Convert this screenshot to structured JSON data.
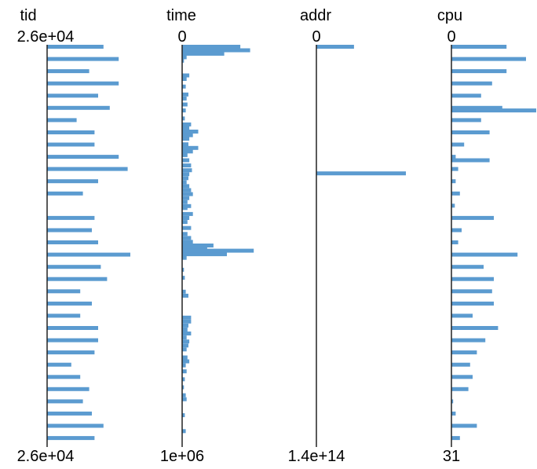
{
  "chart_data": {
    "type": "bar",
    "orientation": "horizontal",
    "grid": false,
    "legend": "none",
    "colors": {
      "bar": "#5b9bd0",
      "axis": "#222222",
      "text": "#000000"
    },
    "columns": [
      {
        "name": "tid",
        "top_label": "2.6e+04",
        "bottom_label": "2.6e+04",
        "bars": [
          {
            "pos": 0.0,
            "len": 0.63
          },
          {
            "pos": 0.0307,
            "len": 0.8
          },
          {
            "pos": 0.0614,
            "len": 0.47
          },
          {
            "pos": 0.0921,
            "len": 0.8
          },
          {
            "pos": 0.1228,
            "len": 0.57
          },
          {
            "pos": 0.1535,
            "len": 0.7
          },
          {
            "pos": 0.1842,
            "len": 0.33
          },
          {
            "pos": 0.2149,
            "len": 0.53
          },
          {
            "pos": 0.2456,
            "len": 0.53
          },
          {
            "pos": 0.2763,
            "len": 0.8
          },
          {
            "pos": 0.307,
            "len": 0.9
          },
          {
            "pos": 0.3377,
            "len": 0.57
          },
          {
            "pos": 0.3684,
            "len": 0.4
          },
          {
            "pos": 0.4298,
            "len": 0.53
          },
          {
            "pos": 0.4605,
            "len": 0.5
          },
          {
            "pos": 0.4912,
            "len": 0.57
          },
          {
            "pos": 0.5219,
            "len": 0.93
          },
          {
            "pos": 0.5526,
            "len": 0.6
          },
          {
            "pos": 0.5833,
            "len": 0.67
          },
          {
            "pos": 0.614,
            "len": 0.37
          },
          {
            "pos": 0.6447,
            "len": 0.5
          },
          {
            "pos": 0.6754,
            "len": 0.37
          },
          {
            "pos": 0.7061,
            "len": 0.57
          },
          {
            "pos": 0.7368,
            "len": 0.57
          },
          {
            "pos": 0.7675,
            "len": 0.53
          },
          {
            "pos": 0.7982,
            "len": 0.27
          },
          {
            "pos": 0.8289,
            "len": 0.37
          },
          {
            "pos": 0.8596,
            "len": 0.47
          },
          {
            "pos": 0.8903,
            "len": 0.4
          },
          {
            "pos": 0.921,
            "len": 0.5
          },
          {
            "pos": 0.9517,
            "len": 0.63
          },
          {
            "pos": 0.9824,
            "len": 0.53
          }
        ]
      },
      {
        "name": "time",
        "top_label": "0",
        "bottom_label": "1e+06",
        "bars": [
          {
            "pos": 0.0,
            "len": 0.65
          },
          {
            "pos": 0.0088,
            "len": 0.76
          },
          {
            "pos": 0.0176,
            "len": 0.47
          },
          {
            "pos": 0.0264,
            "len": 0.05
          },
          {
            "pos": 0.0352,
            "len": 0.02
          },
          {
            "pos": 0.072,
            "len": 0.08
          },
          {
            "pos": 0.0808,
            "len": 0.05
          },
          {
            "pos": 0.1,
            "len": 0.04
          },
          {
            "pos": 0.12,
            "len": 0.07
          },
          {
            "pos": 0.13,
            "len": 0.05
          },
          {
            "pos": 0.145,
            "len": 0.06
          },
          {
            "pos": 0.16,
            "len": 0.04
          },
          {
            "pos": 0.18,
            "len": 0.03
          },
          {
            "pos": 0.195,
            "len": 0.1
          },
          {
            "pos": 0.204,
            "len": 0.08
          },
          {
            "pos": 0.213,
            "len": 0.18
          },
          {
            "pos": 0.222,
            "len": 0.12
          },
          {
            "pos": 0.231,
            "len": 0.08
          },
          {
            "pos": 0.245,
            "len": 0.07
          },
          {
            "pos": 0.254,
            "len": 0.18
          },
          {
            "pos": 0.263,
            "len": 0.12
          },
          {
            "pos": 0.272,
            "len": 0.06
          },
          {
            "pos": 0.285,
            "len": 0.08
          },
          {
            "pos": 0.298,
            "len": 0.1
          },
          {
            "pos": 0.31,
            "len": 0.11
          },
          {
            "pos": 0.32,
            "len": 0.08
          },
          {
            "pos": 0.33,
            "len": 0.07
          },
          {
            "pos": 0.34,
            "len": 0.05
          },
          {
            "pos": 0.35,
            "len": 0.08
          },
          {
            "pos": 0.36,
            "len": 0.1
          },
          {
            "pos": 0.37,
            "len": 0.12
          },
          {
            "pos": 0.38,
            "len": 0.08
          },
          {
            "pos": 0.39,
            "len": 0.06
          },
          {
            "pos": 0.4,
            "len": 0.1
          },
          {
            "pos": 0.405,
            "len": 0.06
          },
          {
            "pos": 0.42,
            "len": 0.12
          },
          {
            "pos": 0.43,
            "len": 0.08
          },
          {
            "pos": 0.44,
            "len": 0.06
          },
          {
            "pos": 0.455,
            "len": 0.1
          },
          {
            "pos": 0.47,
            "len": 0.06
          },
          {
            "pos": 0.48,
            "len": 0.1
          },
          {
            "pos": 0.49,
            "len": 0.12
          },
          {
            "pos": 0.499,
            "len": 0.35
          },
          {
            "pos": 0.508,
            "len": 0.28
          },
          {
            "pos": 0.512,
            "len": 0.8
          },
          {
            "pos": 0.521,
            "len": 0.5
          },
          {
            "pos": 0.53,
            "len": 0.05
          },
          {
            "pos": 0.56,
            "len": 0.02
          },
          {
            "pos": 0.58,
            "len": 0.03
          },
          {
            "pos": 0.615,
            "len": 0.04
          },
          {
            "pos": 0.625,
            "len": 0.07
          },
          {
            "pos": 0.68,
            "len": 0.1
          },
          {
            "pos": 0.69,
            "len": 0.1
          },
          {
            "pos": 0.7,
            "len": 0.07
          },
          {
            "pos": 0.71,
            "len": 0.06
          },
          {
            "pos": 0.72,
            "len": 0.1
          },
          {
            "pos": 0.73,
            "len": 0.05
          },
          {
            "pos": 0.74,
            "len": 0.08
          },
          {
            "pos": 0.75,
            "len": 0.07
          },
          {
            "pos": 0.76,
            "len": 0.05
          },
          {
            "pos": 0.78,
            "len": 0.06
          },
          {
            "pos": 0.79,
            "len": 0.08
          },
          {
            "pos": 0.8,
            "len": 0.04
          },
          {
            "pos": 0.815,
            "len": 0.05
          },
          {
            "pos": 0.835,
            "len": 0.03
          },
          {
            "pos": 0.855,
            "len": 0.02
          },
          {
            "pos": 0.875,
            "len": 0.04
          },
          {
            "pos": 0.885,
            "len": 0.05
          },
          {
            "pos": 0.925,
            "len": 0.03
          },
          {
            "pos": 0.965,
            "len": 0.04
          }
        ]
      },
      {
        "name": "addr",
        "top_label": "0",
        "bottom_label": "1.4e+14",
        "bars": [
          {
            "pos": 0.0,
            "len": 0.42
          },
          {
            "pos": 0.318,
            "len": 1.0
          }
        ]
      },
      {
        "name": "cpu",
        "top_label": "0",
        "bottom_label": "31",
        "bars": [
          {
            "pos": 0.0,
            "len": 0.65
          },
          {
            "pos": 0.0307,
            "len": 0.88
          },
          {
            "pos": 0.0614,
            "len": 0.65
          },
          {
            "pos": 0.0921,
            "len": 0.48
          },
          {
            "pos": 0.1228,
            "len": 0.35
          },
          {
            "pos": 0.1535,
            "len": 0.6
          },
          {
            "pos": 0.16,
            "len": 1.0
          },
          {
            "pos": 0.1842,
            "len": 0.35
          },
          {
            "pos": 0.2149,
            "len": 0.45
          },
          {
            "pos": 0.2456,
            "len": 0.15
          },
          {
            "pos": 0.2763,
            "len": 0.05
          },
          {
            "pos": 0.285,
            "len": 0.45
          },
          {
            "pos": 0.307,
            "len": 0.08
          },
          {
            "pos": 0.3377,
            "len": 0.05
          },
          {
            "pos": 0.3684,
            "len": 0.1
          },
          {
            "pos": 0.3991,
            "len": 0.04
          },
          {
            "pos": 0.4298,
            "len": 0.5
          },
          {
            "pos": 0.4605,
            "len": 0.12
          },
          {
            "pos": 0.4912,
            "len": 0.08
          },
          {
            "pos": 0.5219,
            "len": 0.78
          },
          {
            "pos": 0.5526,
            "len": 0.38
          },
          {
            "pos": 0.5833,
            "len": 0.5
          },
          {
            "pos": 0.614,
            "len": 0.48
          },
          {
            "pos": 0.6447,
            "len": 0.5
          },
          {
            "pos": 0.6754,
            "len": 0.25
          },
          {
            "pos": 0.7061,
            "len": 0.55
          },
          {
            "pos": 0.7368,
            "len": 0.4
          },
          {
            "pos": 0.7675,
            "len": 0.3
          },
          {
            "pos": 0.7982,
            "len": 0.22
          },
          {
            "pos": 0.8289,
            "len": 0.25
          },
          {
            "pos": 0.8596,
            "len": 0.2
          },
          {
            "pos": 0.8903,
            "len": 0.02
          },
          {
            "pos": 0.921,
            "len": 0.05
          },
          {
            "pos": 0.9517,
            "len": 0.3
          },
          {
            "pos": 0.9824,
            "len": 0.1
          }
        ]
      }
    ]
  }
}
